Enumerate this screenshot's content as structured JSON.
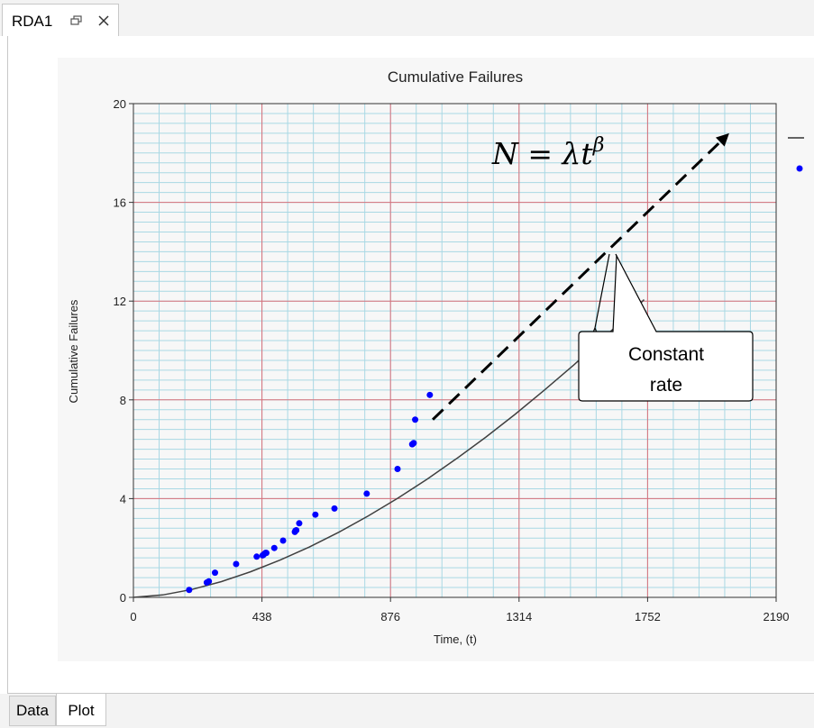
{
  "document_tab": {
    "title": "RDA1"
  },
  "bottom_tabs": [
    {
      "label": "Data",
      "active": false
    },
    {
      "label": "Plot",
      "active": true
    }
  ],
  "colors": {
    "major_grid": "#d9707a",
    "minor_grid": "#a9d8e4",
    "data_points": "#0000ff",
    "model_line": "#404040"
  },
  "chart_data": {
    "type": "scatter",
    "title": "Cumulative Failures",
    "xlabel": "Time, (t)",
    "ylabel": "Cumulative Failures",
    "xlim": [
      0,
      2190
    ],
    "ylim": [
      0,
      20
    ],
    "x_ticks": [
      0,
      438,
      876,
      1314,
      1752,
      2190
    ],
    "y_ticks": [
      0,
      4,
      8,
      12,
      16,
      20
    ],
    "grid": true,
    "series": [
      {
        "type": "scatter",
        "x": [
          190,
          250,
          257,
          278,
          350,
          420,
          440,
          443,
          445,
          450,
          453,
          480,
          510,
          550,
          552,
          555,
          565,
          620,
          685,
          795,
          900,
          950,
          955,
          960,
          1010
        ],
        "y": [
          0.3,
          0.6,
          0.65,
          1.0,
          1.35,
          1.65,
          1.7,
          1.72,
          1.75,
          1.8,
          1.8,
          2.0,
          2.3,
          2.65,
          2.7,
          2.72,
          3.0,
          3.35,
          3.6,
          4.2,
          5.2,
          6.2,
          6.25,
          7.2,
          8.2
        ]
      },
      {
        "type": "line",
        "x": [
          0,
          100,
          200,
          300,
          400,
          500,
          600,
          700,
          800,
          900,
          1000,
          1100,
          1200,
          1300,
          1400,
          1500,
          1600,
          1700,
          1740
        ],
        "y": [
          0,
          0.1,
          0.32,
          0.64,
          1.04,
          1.51,
          2.04,
          2.64,
          3.3,
          4.01,
          4.78,
          5.61,
          6.48,
          7.41,
          8.39,
          9.41,
          10.48,
          11.6,
          12.06
        ]
      },
      {
        "type": "line",
        "x": [
          1020,
          2030
        ],
        "y": [
          7.2,
          18.8
        ]
      }
    ],
    "annotations": {
      "formula_prefix": "N = λt",
      "formula_exponent": "β",
      "callout_line1": "Constant",
      "callout_line2": "rate"
    }
  }
}
